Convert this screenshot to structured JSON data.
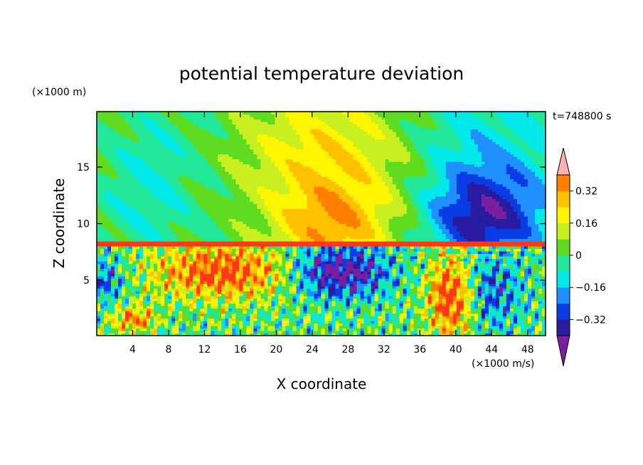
{
  "chart_data": {
    "type": "heatmap",
    "title": "potential temperature deviation",
    "xlabel": "X coordinate",
    "ylabel": "Z coordinate",
    "x_unit": "(×1000 m/s)",
    "y_unit": "(×1000 m)",
    "time_label": "t=748800 s",
    "xlim": [
      0,
      50
    ],
    "ylim": [
      0.1,
      19.9
    ],
    "x_ticks": [
      4,
      8,
      12,
      16,
      20,
      24,
      28,
      32,
      36,
      40,
      44,
      48
    ],
    "y_ticks": [
      5,
      10,
      15
    ],
    "levels": [
      -0.4,
      -0.32,
      -0.24,
      -0.16,
      -0.08,
      0,
      0.08,
      0.16,
      0.24,
      0.32,
      0.4
    ],
    "colorbar_labels": [
      "0.32",
      "0.16",
      "0",
      "−0.16",
      "−0.32"
    ],
    "colorbar_label_values": [
      0.32,
      0.16,
      0,
      -0.16,
      -0.32
    ],
    "colors": [
      "#7a1fa0",
      "#2a1ba0",
      "#0a3ce6",
      "#1e90ff",
      "#00e8e8",
      "#20e898",
      "#60dc20",
      "#c8f020",
      "#fff500",
      "#ffc000",
      "#ff7f00",
      "#ff3818",
      "#ffb0b0"
    ],
    "regions": [
      {
        "kind": "upper-layer",
        "description": "smooth large-scale pattern above ~8.5 km"
      },
      {
        "kind": "lower-layer",
        "description": "turbulent small-scale structures below ~8.5 km"
      }
    ]
  }
}
